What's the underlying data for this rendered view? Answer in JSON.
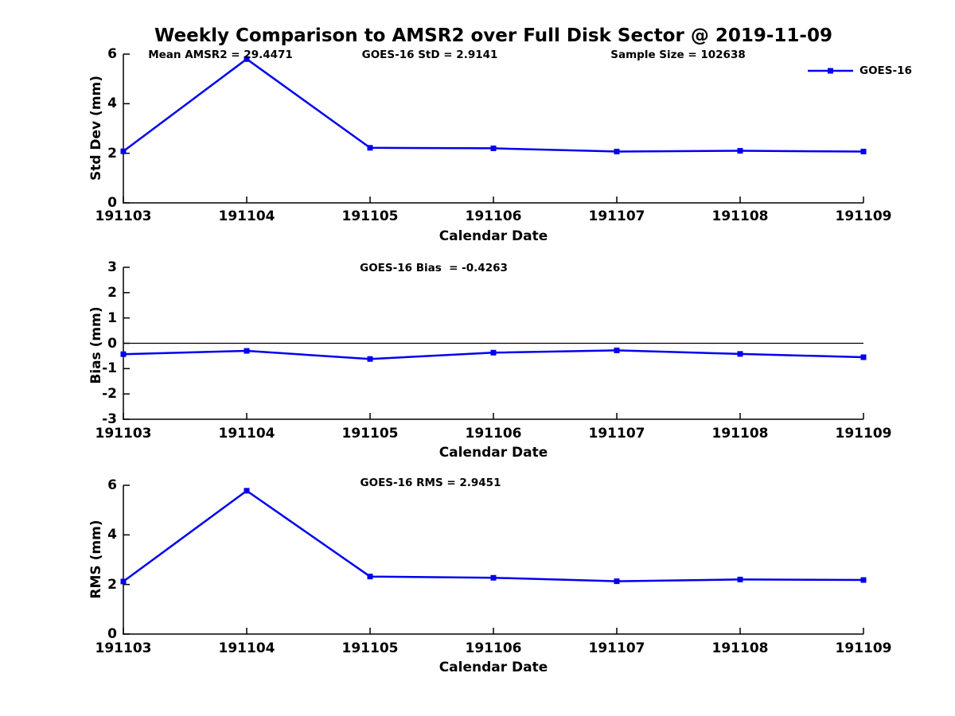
{
  "title": "Weekly Comparison to AMSR2 over Full Disk Sector @ 2019-11-09",
  "legend": {
    "label": "GOES-16",
    "color": "#0000EE",
    "position": "northeast-outside"
  },
  "colors": {
    "series_blue": "#0000EE",
    "axis": "#000000",
    "text": "#000000",
    "background": "#FFFFFF"
  },
  "chart_data": [
    {
      "type": "line",
      "id": "std-dev",
      "annotations": [
        {
          "text": "Mean AMSR2 = 29.4471"
        },
        {
          "text": "GOES-16 StD = 2.9141"
        },
        {
          "text": "Sample Size = 102638"
        }
      ],
      "categories": [
        "191103",
        "191104",
        "191105",
        "191106",
        "191107",
        "191108",
        "191109"
      ],
      "series": [
        {
          "name": "GOES-16",
          "color": "#0000EE",
          "marker": "square",
          "values": [
            2.08,
            5.8,
            2.22,
            2.2,
            2.07,
            2.1,
            2.07
          ]
        }
      ],
      "xlabel": "Calendar Date",
      "ylabel": "Std Dev (mm)",
      "ylim": [
        0,
        6
      ],
      "yticks": [
        0,
        2,
        4,
        6
      ],
      "grid": false,
      "zero_line": false
    },
    {
      "type": "line",
      "id": "bias",
      "annotations": [
        {
          "text": "GOES-16 Bias  = -0.4263"
        }
      ],
      "categories": [
        "191103",
        "191104",
        "191105",
        "191106",
        "191107",
        "191108",
        "191109"
      ],
      "series": [
        {
          "name": "GOES-16",
          "color": "#0000EE",
          "marker": "square",
          "values": [
            -0.43,
            -0.3,
            -0.62,
            -0.37,
            -0.28,
            -0.42,
            -0.55
          ]
        }
      ],
      "xlabel": "Calendar Date",
      "ylabel": "Bias (mm)",
      "ylim": [
        -3,
        3
      ],
      "yticks": [
        3,
        2,
        1,
        0,
        -1,
        -2,
        -3
      ],
      "grid": false,
      "zero_line": true
    },
    {
      "type": "line",
      "id": "rms",
      "annotations": [
        {
          "text": "GOES-16 RMS = 2.9451"
        }
      ],
      "categories": [
        "191103",
        "191104",
        "191105",
        "191106",
        "191107",
        "191108",
        "191109"
      ],
      "series": [
        {
          "name": "GOES-16",
          "color": "#0000EE",
          "marker": "square",
          "values": [
            2.12,
            5.78,
            2.32,
            2.27,
            2.13,
            2.2,
            2.18
          ]
        }
      ],
      "xlabel": "Calendar Date",
      "ylabel": "RMS (mm)",
      "ylim": [
        0,
        6
      ],
      "yticks": [
        0,
        2,
        4,
        6
      ],
      "grid": false,
      "zero_line": false
    }
  ]
}
